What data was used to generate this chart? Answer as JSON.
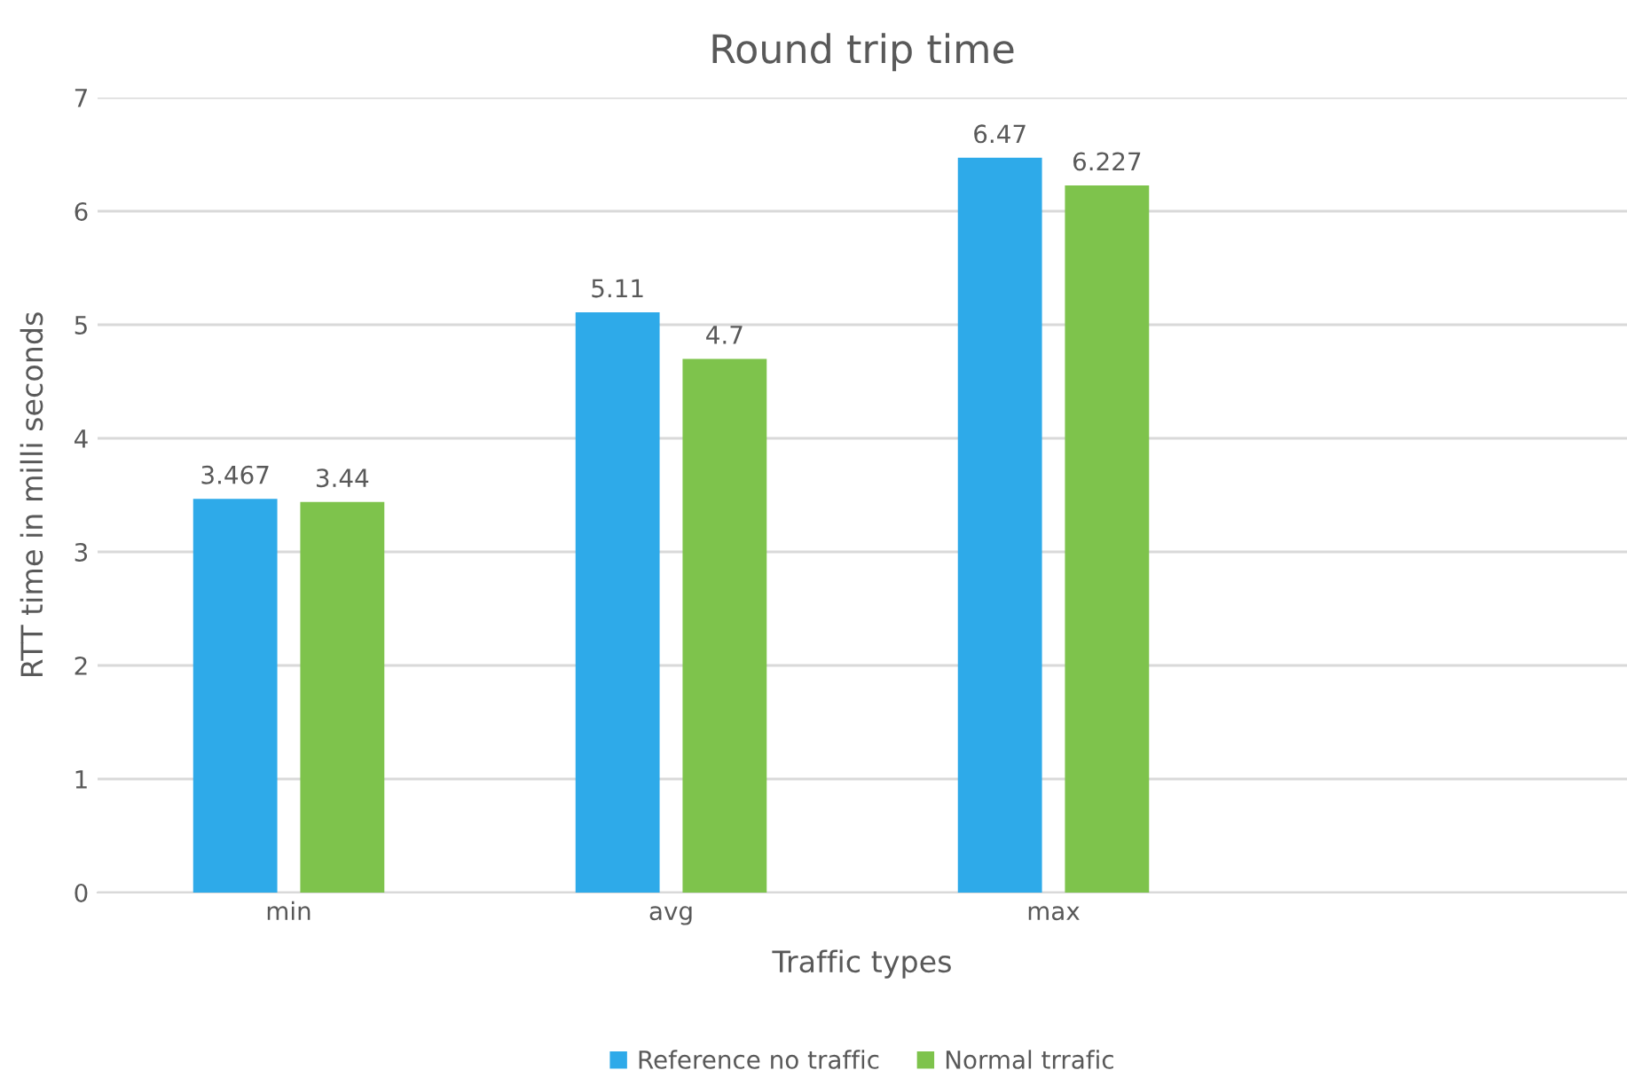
{
  "chart_data": {
    "type": "bar",
    "title": "Round trip time",
    "xlabel": "Traffic types",
    "ylabel": "RTT time in milli seconds",
    "categories": [
      "min",
      "avg",
      "max",
      null
    ],
    "series": [
      {
        "name": "Reference no traffic",
        "color": "#2eaae9",
        "values": [
          3.467,
          5.11,
          6.47,
          null
        ]
      },
      {
        "name": "Normal trrafic",
        "color": "#7ec34c",
        "values": [
          3.44,
          4.7,
          6.227,
          null
        ]
      }
    ],
    "ylim": [
      0,
      7
    ],
    "yticks": [
      0,
      1,
      2,
      3,
      4,
      5,
      6,
      7
    ],
    "grid": "y",
    "legend": "bottom",
    "data_labels": true
  }
}
